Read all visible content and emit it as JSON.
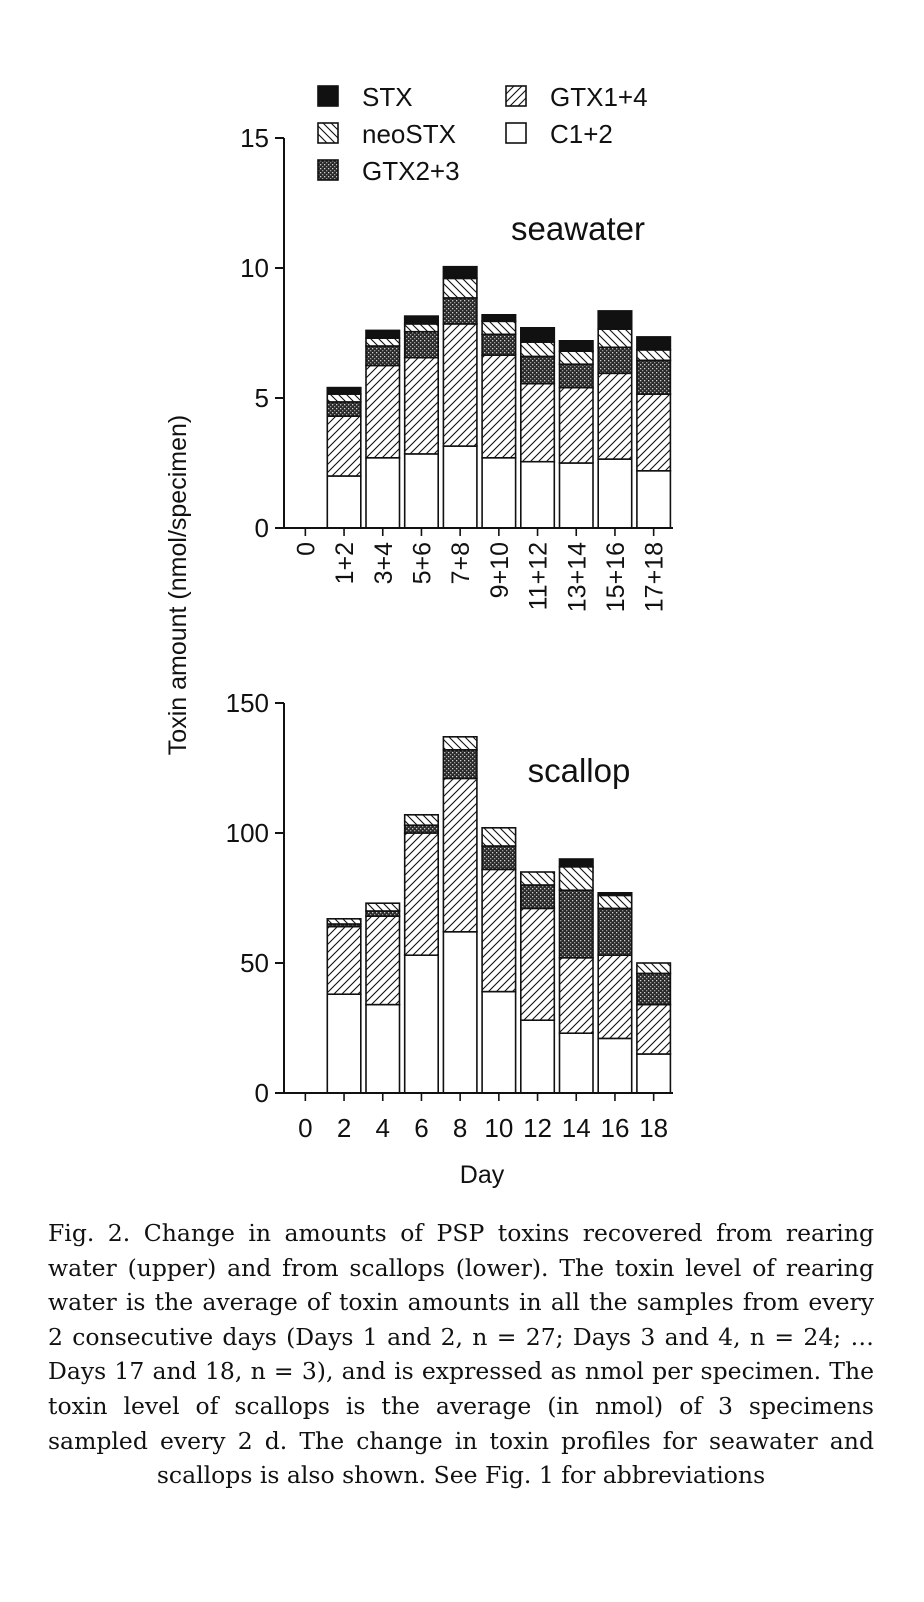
{
  "chart_data": [
    {
      "type": "bar",
      "stacked": true,
      "title": "seawater",
      "xlabel": "",
      "ylabel": "Toxin amount (nmol/specimen)",
      "ylim": [
        0,
        15
      ],
      "yticks": [
        "0",
        "5",
        "10",
        "15"
      ],
      "categories": [
        "0",
        "1+2",
        "3+4",
        "5+6",
        "7+8",
        "9+10",
        "11+12",
        "13+14",
        "15+16",
        "17+18"
      ],
      "legend_position": "top",
      "series": [
        {
          "name": "C1+2",
          "pattern": "white",
          "values": [
            0,
            2.0,
            2.7,
            2.85,
            3.15,
            2.7,
            2.55,
            2.5,
            2.65,
            2.2
          ]
        },
        {
          "name": "GTX1+4",
          "pattern": "hatch-right",
          "values": [
            0,
            2.3,
            3.55,
            3.7,
            4.7,
            3.95,
            3.0,
            2.9,
            3.3,
            2.95
          ]
        },
        {
          "name": "GTX2+3",
          "pattern": "dense-dark",
          "values": [
            0,
            0.55,
            0.75,
            1.0,
            1.0,
            0.8,
            1.05,
            0.9,
            1.0,
            1.3
          ]
        },
        {
          "name": "neoSTX",
          "pattern": "hatch-left",
          "values": [
            0,
            0.3,
            0.3,
            0.3,
            0.75,
            0.5,
            0.55,
            0.5,
            0.7,
            0.4
          ]
        },
        {
          "name": "STX",
          "pattern": "black",
          "values": [
            0,
            0.25,
            0.3,
            0.3,
            0.45,
            0.25,
            0.55,
            0.4,
            0.7,
            0.5
          ]
        }
      ]
    },
    {
      "type": "bar",
      "stacked": true,
      "title": "scallop",
      "xlabel": "Day",
      "ylabel": "Toxin amount (nmol/specimen)",
      "ylim": [
        0,
        150
      ],
      "yticks": [
        "0",
        "50",
        "100",
        "150"
      ],
      "categories": [
        "0",
        "2",
        "4",
        "6",
        "8",
        "10",
        "12",
        "14",
        "16",
        "18"
      ],
      "series": [
        {
          "name": "C1+2",
          "pattern": "white",
          "values": [
            0,
            38,
            34,
            53,
            62,
            39,
            28,
            23,
            21,
            15
          ]
        },
        {
          "name": "GTX1+4",
          "pattern": "hatch-right",
          "values": [
            0,
            26,
            34,
            47,
            59,
            47,
            43,
            29,
            32,
            19
          ]
        },
        {
          "name": "GTX2+3",
          "pattern": "dense-dark",
          "values": [
            0,
            1,
            2,
            3,
            11,
            9,
            9,
            26,
            18,
            12
          ]
        },
        {
          "name": "neoSTX",
          "pattern": "hatch-left",
          "values": [
            0,
            2,
            3,
            4,
            5,
            7,
            5,
            9,
            5,
            4
          ]
        },
        {
          "name": "STX",
          "pattern": "black",
          "values": [
            0,
            0,
            0,
            0,
            0,
            0,
            0,
            3,
            1,
            0
          ]
        }
      ]
    }
  ],
  "legend": {
    "items": [
      {
        "label": "STX",
        "pattern": "black"
      },
      {
        "label": "neoSTX",
        "pattern": "hatch-left"
      },
      {
        "label": "GTX2+3",
        "pattern": "dense-dark"
      },
      {
        "label": "GTX1+4",
        "pattern": "hatch-right"
      },
      {
        "label": "C1+2",
        "pattern": "white"
      }
    ]
  },
  "caption": "Fig. 2. Change in amounts of PSP toxins recovered from rearing water (upper) and from scallops (lower). The toxin level of rearing water is the average of toxin amounts in all the samples from every 2 consecutive days (Days 1 and 2, n = 27; Days 3 and 4, n = 24; … Days 17 and 18, n = 3), and is expressed as nmol per specimen. The toxin level of scallops is the average (in nmol) of 3 specimens sampled every 2 d. The change in toxin profiles for seawater and scallops is also shown. See Fig. 1 for abbreviations"
}
